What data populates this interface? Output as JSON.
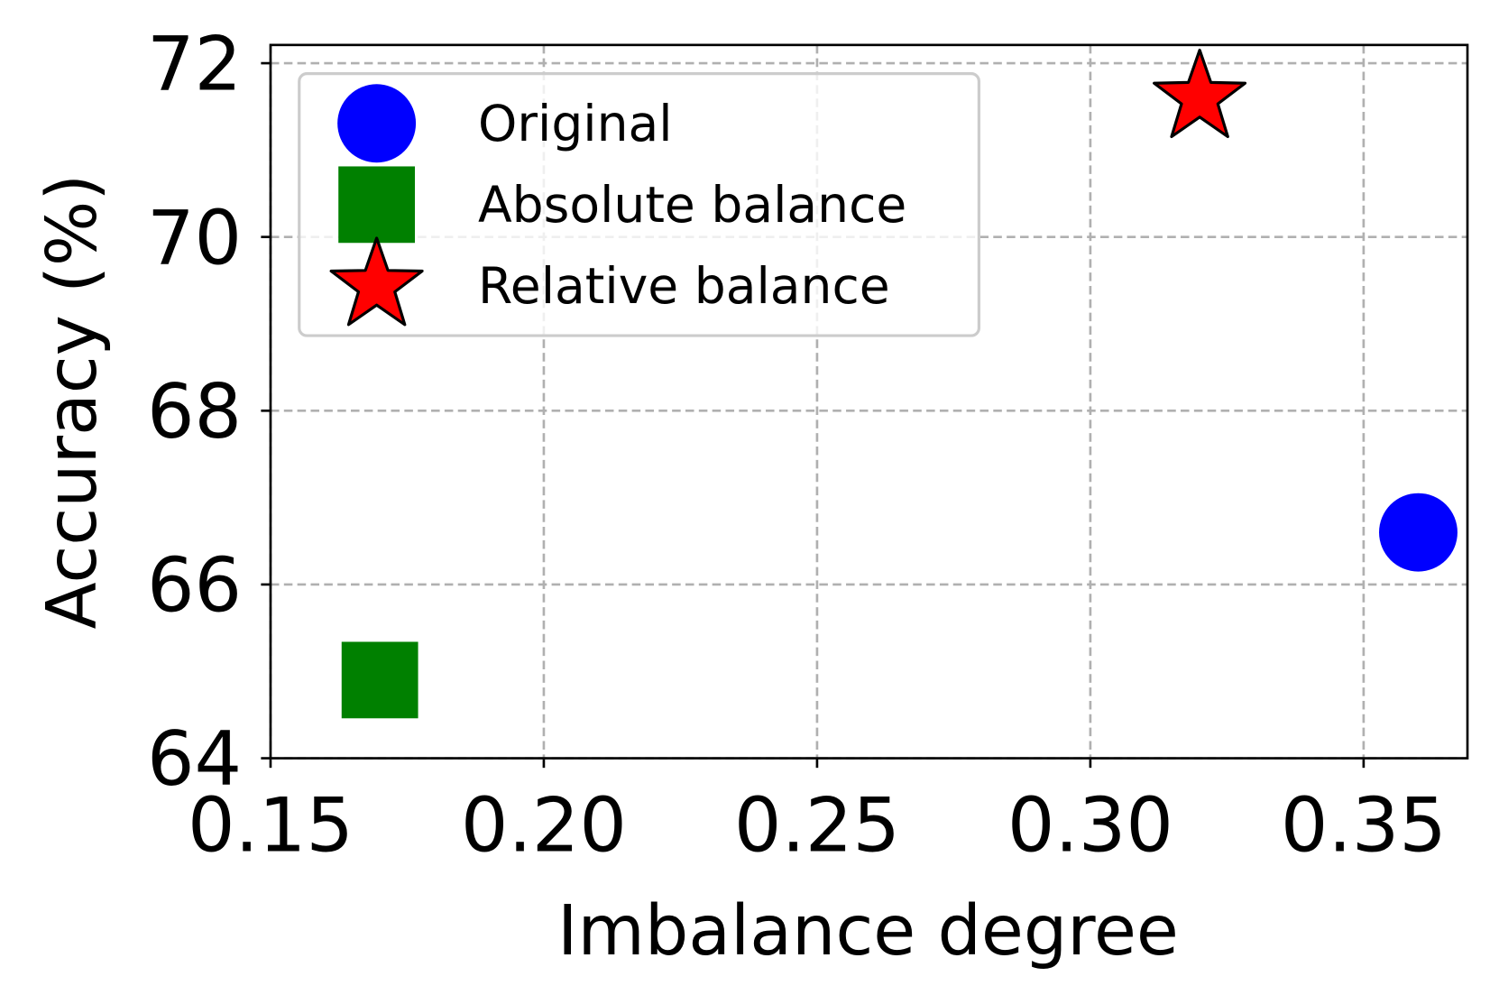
{
  "chart_data": {
    "type": "scatter",
    "xlabel": "Imbalance degree",
    "ylabel": "Accuracy (%)",
    "xlim": [
      0.15,
      0.369
    ],
    "ylim": [
      64,
      72.21
    ],
    "xticks": [
      0.15,
      {
        "value": 0.2,
        "label": "0.20"
      },
      0.25,
      {
        "value": 0.3,
        "label": "0.30"
      },
      0.35
    ],
    "yticks": [
      64,
      66,
      68,
      70,
      72
    ],
    "grid": true,
    "legend": "upper left",
    "series": [
      {
        "name": "Original",
        "color": "#0000ff",
        "marker": "circle",
        "x": [
          0.36
        ],
        "values": [
          66.6
        ]
      },
      {
        "name": "Absolute balance",
        "color": "#008000",
        "marker": "square",
        "x": [
          0.17
        ],
        "values": [
          64.9
        ]
      },
      {
        "name": "Relative balance",
        "color": "#ff0000",
        "marker": "star",
        "x": [
          0.32
        ],
        "values": [
          71.6
        ]
      }
    ]
  }
}
